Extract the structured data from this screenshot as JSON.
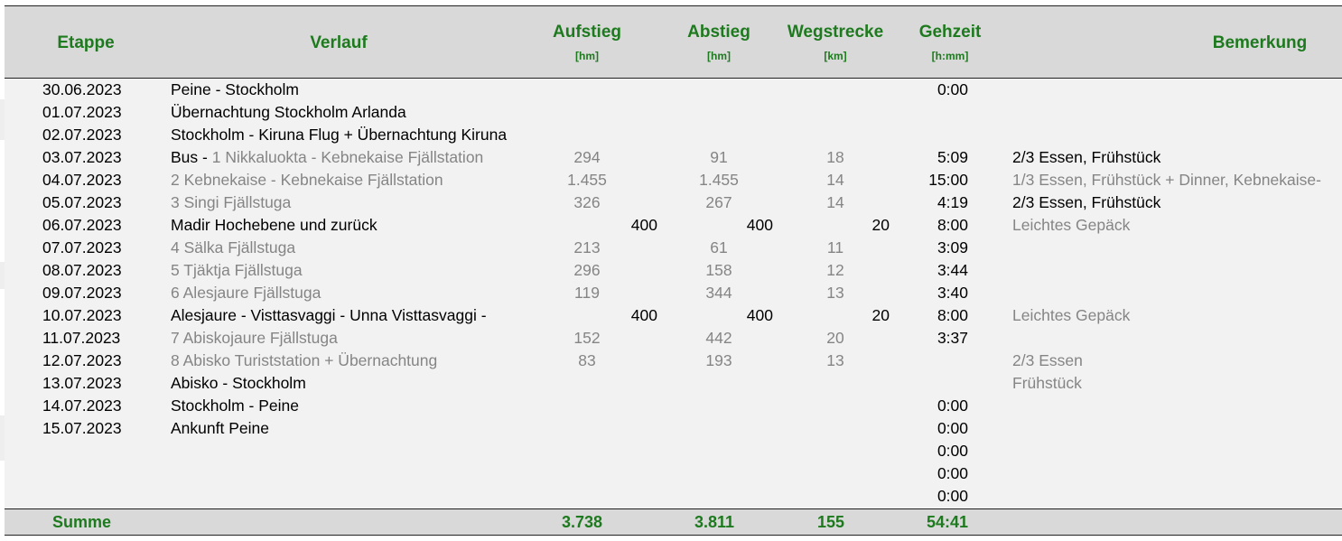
{
  "header": {
    "etappe": "Etappe",
    "verlauf": "Verlauf",
    "aufstieg": "Aufstieg",
    "aufstieg_unit": "[hm]",
    "abstieg": "Abstieg",
    "abstieg_unit": "[hm]",
    "wegstrecke": "Wegstrecke",
    "wegstrecke_unit": "[km]",
    "gehzeit": "Gehzeit",
    "gehzeit_unit": "[h:mm]",
    "bemerkung": "Bemerkung"
  },
  "rows": [
    {
      "date": "30.06.2023",
      "prefix": "",
      "route": "Peine - Stockholm",
      "route_gray": false,
      "time": "0:00"
    },
    {
      "date": "01.07.2023",
      "prefix": "",
      "route": "Übernachtung Stockholm Arlanda",
      "route_gray": false
    },
    {
      "date": "02.07.2023",
      "prefix": "",
      "route": "Stockholm - Kiruna Flug + Übernachtung Kiruna",
      "route_gray": false
    },
    {
      "date": "03.07.2023",
      "prefix": "Bus - ",
      "route": "1 Nikkaluokta - Kebnekaise Fjällstation",
      "route_gray": true,
      "up": "294",
      "down": "91",
      "km": "18",
      "time": "5:09",
      "note": "2/3 Essen, Frühstück",
      "note_gray": false
    },
    {
      "date": "04.07.2023",
      "prefix": "",
      "route": "2 Kebnekaise - Kebnekaise Fjällstation",
      "route_gray": true,
      "up": "1.455",
      "down": "1.455",
      "km": "14",
      "time": "15:00",
      "note": "1/3 Essen, Frühstück + Dinner, Kebnekaise-",
      "note_gray": true
    },
    {
      "date": "05.07.2023",
      "prefix": "",
      "route": "3 Singi Fjällstuga",
      "route_gray": true,
      "up": "326",
      "down": "267",
      "km": "14",
      "time": "4:19",
      "note": "2/3 Essen, Frühstück",
      "note_gray": false
    },
    {
      "date": "06.07.2023",
      "prefix": "",
      "route": "Madir Hochebene und zurück",
      "route_gray": false,
      "up": "400",
      "down": "400",
      "km": "20",
      "time": "8:00",
      "note": "Leichtes Gepäck",
      "note_gray": true
    },
    {
      "date": "07.07.2023",
      "prefix": "",
      "route": "4 Sälka Fjällstuga",
      "route_gray": true,
      "up": "213",
      "down": "61",
      "km": "11",
      "time": "3:09"
    },
    {
      "date": "08.07.2023",
      "prefix": "",
      "route": "5 Tjäktja Fjällstuga",
      "route_gray": true,
      "up": "296",
      "down": "158",
      "km": "12",
      "time": "3:44"
    },
    {
      "date": "09.07.2023",
      "prefix": "",
      "route": "6 Alesjaure Fjällstuga",
      "route_gray": true,
      "up": "119",
      "down": "344",
      "km": "13",
      "time": "3:40"
    },
    {
      "date": "10.07.2023",
      "prefix": "",
      "route": "Alesjaure - Visttasvaggi - Unna Visttasvaggi -",
      "route_gray": false,
      "up": "400",
      "down": "400",
      "km": "20",
      "time": "8:00",
      "note": "Leichtes Gepäck",
      "note_gray": true
    },
    {
      "date": "11.07.2023",
      "prefix": "",
      "route": "7 Abiskojaure Fjällstuga",
      "route_gray": true,
      "up": "152",
      "down": "442",
      "km": "20",
      "time": "3:37"
    },
    {
      "date": "12.07.2023",
      "prefix": "",
      "route": "8 Abisko Turiststation + Übernachtung",
      "route_gray": true,
      "up": "83",
      "down": "193",
      "km": "13",
      "note": "2/3 Essen",
      "note_gray": true
    },
    {
      "date": "13.07.2023",
      "prefix": "",
      "route": "Abisko - Stockholm",
      "route_gray": false,
      "note": "Frühstück",
      "note_gray": true
    },
    {
      "date": "14.07.2023",
      "prefix": "",
      "route": "Stockholm - Peine",
      "route_gray": false,
      "time": "0:00"
    },
    {
      "date": "15.07.2023",
      "prefix": "",
      "route": "Ankunft Peine",
      "route_gray": false,
      "time": "0:00"
    },
    {
      "time": "0:00"
    },
    {
      "time": "0:00"
    },
    {
      "time": "0:00"
    }
  ],
  "footer": {
    "label": "Summe",
    "aufstieg": "3.738",
    "abstieg": "3.811",
    "wegstrecke": "155",
    "gehzeit": "54:41"
  }
}
